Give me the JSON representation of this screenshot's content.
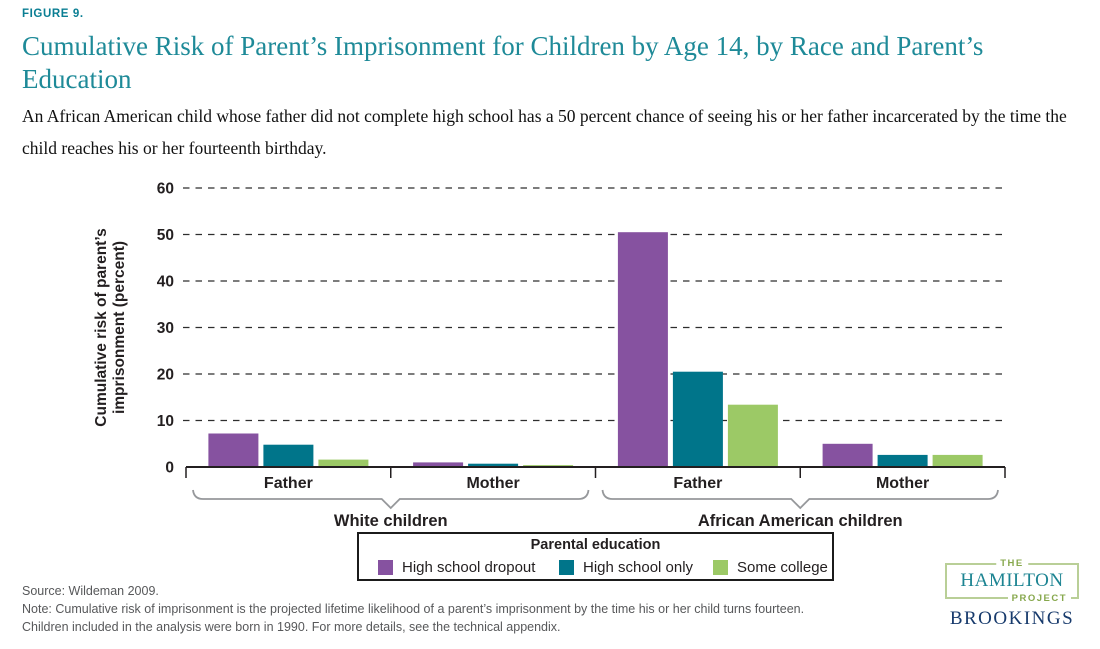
{
  "figure_label": "FIGURE 9.",
  "title": "Cumulative Risk of Parent’s Imprisonment for Children by Age 14, by Race and Parent’s Education",
  "subtitle": "An African American child whose father did not complete high school has a 50 percent chance of seeing his or her father incarcerated by the time the child reaches his or her fourteenth birthday.",
  "chart_data": {
    "type": "bar",
    "title": "",
    "ylabel_line1": "Cumulative risk of parent’s",
    "ylabel_line2": "imprisonment (percent)",
    "ylim": [
      0,
      60
    ],
    "yticks": [
      0,
      10,
      20,
      30,
      40,
      50,
      60
    ],
    "grid": "horizontal-dashed",
    "categories": [
      "Father",
      "Mother",
      "Father",
      "Mother"
    ],
    "race_groups": [
      {
        "label": "White children",
        "categories": [
          "Father",
          "Mother"
        ]
      },
      {
        "label": "African American children",
        "categories": [
          "Father",
          "Mother"
        ]
      }
    ],
    "series": [
      {
        "name": "High school dropout",
        "color": "#8652A0",
        "values": [
          7.2,
          1.0,
          50.5,
          5.0
        ]
      },
      {
        "name": "High school only",
        "color": "#00758A",
        "values": [
          4.8,
          0.7,
          20.5,
          2.6
        ]
      },
      {
        "name": "Some college",
        "color": "#9CC966",
        "values": [
          1.6,
          0.4,
          13.4,
          2.6
        ]
      }
    ],
    "legend_title": "Parental education",
    "legend_position": "bottom"
  },
  "footer": {
    "source": "Source: Wildeman 2009.",
    "note_line1": "Note: Cumulative risk of imprisonment is the projected lifetime likelihood of a parent’s imprisonment by the time his or her child turns fourteen.",
    "note_line2": "Children included in the analysis were born in 1990. For more details, see the technical appendix."
  },
  "logo": {
    "the": "THE",
    "hamilton": "HAMILTON",
    "project": "PROJECT",
    "brookings": "BROOKINGS"
  },
  "colors": {
    "title_teal": "#1E8A98",
    "axis_text": "#231F20",
    "note_gray": "#57585A",
    "bracket_gray": "#96989B"
  }
}
